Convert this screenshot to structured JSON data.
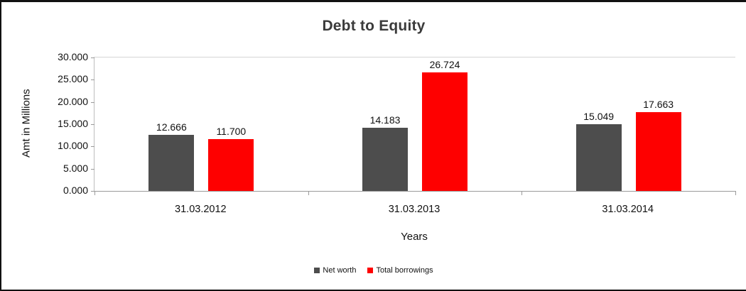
{
  "chart_data": {
    "type": "bar",
    "title": "Debt to Equity",
    "xlabel": "Years",
    "ylabel": "Amt in Millions",
    "categories": [
      "31.03.2012",
      "31.03.2013",
      "31.03.2014"
    ],
    "series": [
      {
        "name": "Net worth",
        "color": "#4d4d4d",
        "values": [
          12.666,
          14.183,
          15.049
        ]
      },
      {
        "name": "Total borrowings",
        "color": "#fe0000",
        "values": [
          11.7,
          26.724,
          17.663
        ]
      }
    ],
    "value_labels": [
      [
        "12.666",
        "11.700"
      ],
      [
        "14.183",
        "26.724"
      ],
      [
        "15.049",
        "17.663"
      ]
    ],
    "ylim": [
      0,
      30
    ],
    "ytick_labels": [
      "30.000",
      "25.000",
      "20.000",
      "15.000",
      "10.000",
      "5.000",
      "0.000"
    ],
    "grid": "top-line-only",
    "legend_position": "bottom"
  }
}
